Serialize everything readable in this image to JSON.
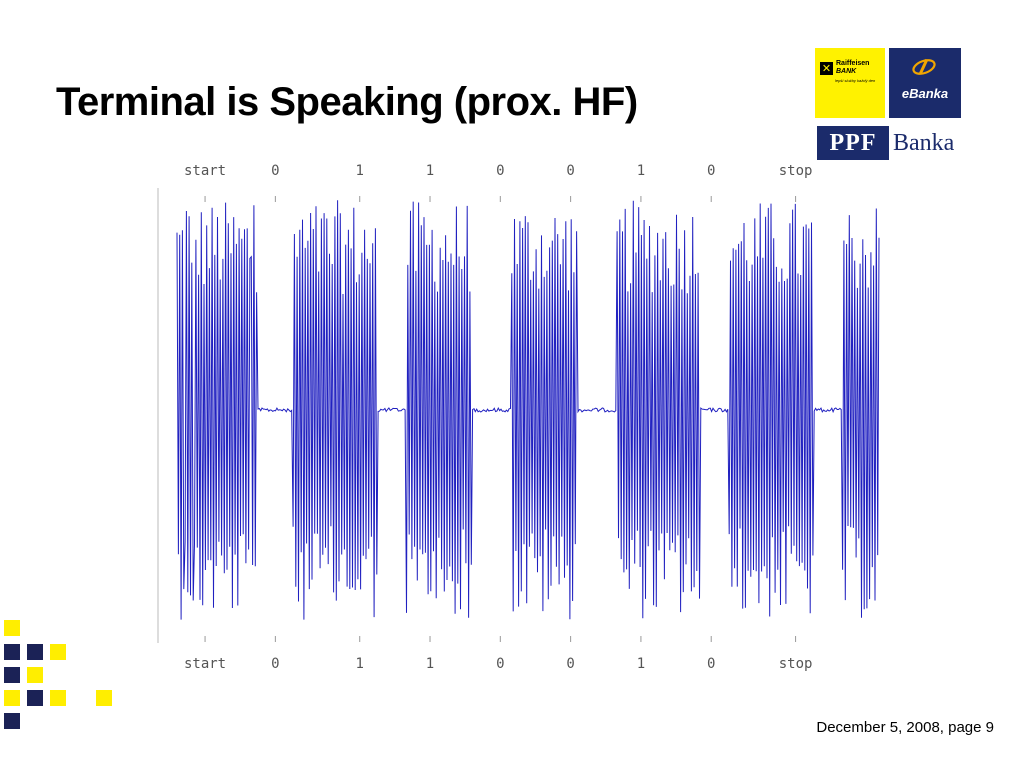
{
  "slide": {
    "title": "Terminal is Speaking (prox. HF)",
    "footer": "December 5, 2008, page 9"
  },
  "logos": {
    "raiffeisen": {
      "name": "Raiffeisen",
      "bank": "BANK",
      "slogan": "lepší služby každý den",
      "color": "#fff200"
    },
    "ebanka": {
      "label": "eBanka",
      "color": "#1b2b6b"
    },
    "ppf": {
      "ppf": "PPF",
      "banka": "Banka",
      "color": "#1b2b6b"
    }
  },
  "chart_data": {
    "type": "line",
    "title": "",
    "xlabel": "",
    "ylabel": "",
    "bit_labels_top": [
      "start",
      "0",
      "1",
      "1",
      "0",
      "0",
      "1",
      "0",
      "stop"
    ],
    "bit_labels_bottom": [
      "start",
      "0",
      "1",
      "1",
      "0",
      "0",
      "1",
      "0",
      "stop"
    ],
    "series": [
      {
        "color": "#2020c0",
        "bursts": [
          {
            "bit": "start",
            "from": 0.0,
            "to": 0.115
          },
          {
            "bit": "0",
            "from": 0.165,
            "to": 0.285
          },
          {
            "bit": "1",
            "from": 0.325,
            "to": 0.42
          },
          {
            "bit": "1",
            "from": 0.475,
            "to": 0.57
          },
          {
            "bit": "0",
            "from": 0.625,
            "to": 0.745
          },
          {
            "bit": "0",
            "from": 0.785,
            "to": 0.905
          },
          {
            "bit": "1",
            "from": 0.945,
            "to": 1.0
          }
        ]
      }
    ]
  },
  "decoration": {
    "yellow": "#ffee00",
    "navy": "#1b2256"
  }
}
